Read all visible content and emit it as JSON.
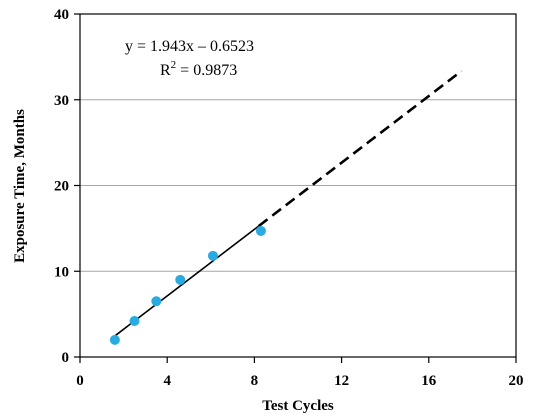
{
  "chart_data": {
    "type": "scatter",
    "xlabel": "Test Cycles",
    "ylabel": "Exposure Time, Months",
    "xlim": [
      0,
      20
    ],
    "ylim": [
      0,
      40
    ],
    "xticks": [
      "0",
      "4",
      "8",
      "12",
      "16",
      "20"
    ],
    "yticks": [
      "0",
      "10",
      "20",
      "30",
      "40"
    ],
    "grid": "horizontal",
    "series": [
      {
        "points": [
          {
            "x": 1.6,
            "y": 2.0
          },
          {
            "x": 2.5,
            "y": 4.2
          },
          {
            "x": 3.5,
            "y": 6.5
          },
          {
            "x": 4.6,
            "y": 9.0
          },
          {
            "x": 6.1,
            "y": 11.8
          },
          {
            "x": 8.3,
            "y": 14.7
          }
        ],
        "color": "#29abe2"
      }
    ],
    "trendline": {
      "slope": 1.943,
      "intercept": -0.6523,
      "solid_x": [
        1.6,
        8.2
      ],
      "dashed_x": [
        8.2,
        17.5
      ],
      "color": "#000000"
    },
    "annotation": {
      "equation": "y = 1.943x – 0.6523",
      "r2_prefix": "R",
      "r2_sup": "2",
      "r2_value": " = 0.9873"
    }
  }
}
